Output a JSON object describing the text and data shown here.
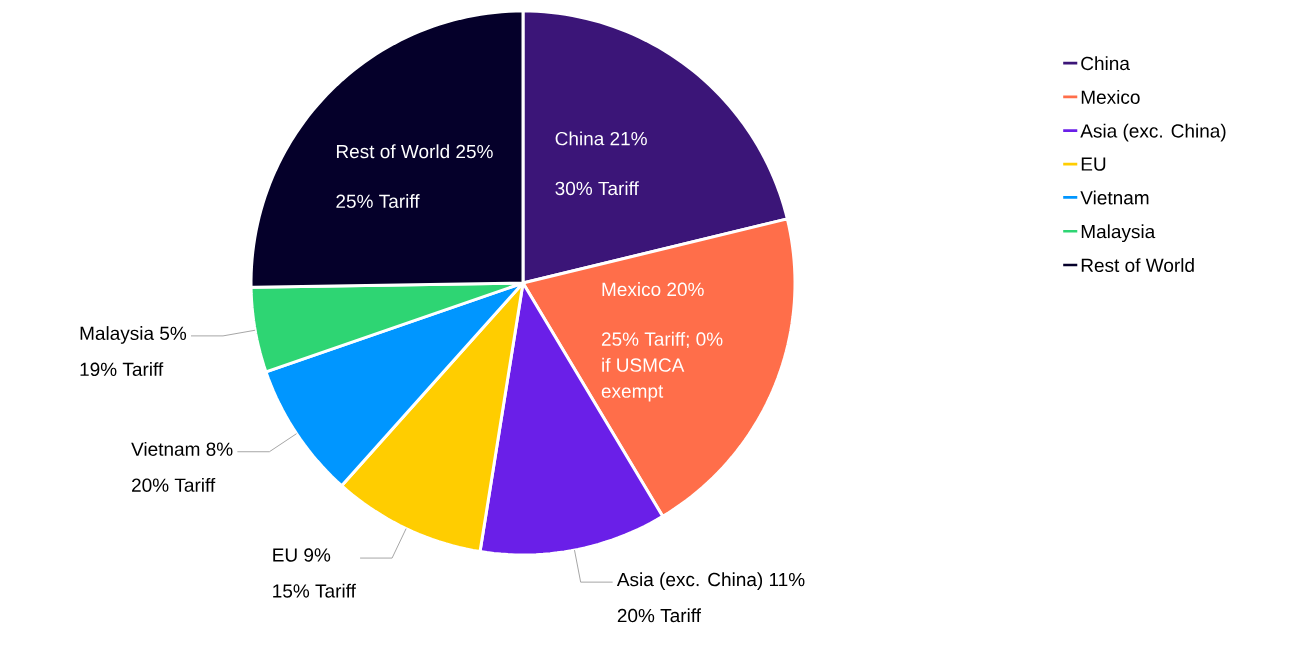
{
  "chart_data": {
    "type": "pie",
    "categories": [
      "China",
      "Mexico",
      "Asia (exc. China)",
      "EU",
      "Vietnam",
      "Malaysia",
      "Rest of World"
    ],
    "values": [
      21,
      20,
      11,
      9,
      8,
      5,
      25
    ],
    "colors": [
      "#3b1578",
      "#ff6e4a",
      "#6a1fe8",
      "#ffcd00",
      "#0096ff",
      "#2ed573",
      "#05002a"
    ],
    "value_labels": [
      "China 21%",
      "Mexico 20%",
      "Asia (exc. China) 11%",
      "EU 9%",
      "Vietnam 8%",
      "Malaysia 5%",
      "Rest of World 25%"
    ],
    "annotations": [
      "30% Tariff",
      "25% Tariff; 0% if USMCA exempt",
      "20% Tariff",
      "15% Tariff",
      "20% Tariff",
      "19% Tariff",
      "25% Tariff"
    ],
    "legend": "right"
  }
}
